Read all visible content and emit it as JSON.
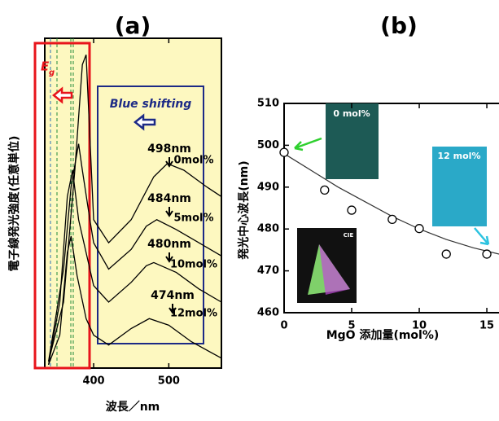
{
  "chart_data": [
    {
      "type": "line",
      "title": "(a)",
      "xlabel": "波長／nm",
      "ylabel": "電子線発光強度(任意単位)",
      "xlim": [
        335,
        570
      ],
      "ylim": [
        0,
        100
      ],
      "xticks": [
        400,
        500
      ],
      "band_label": {
        "main": "E",
        "sub": "g"
      },
      "shift_label": "Blue shifting",
      "series": [
        {
          "name": "0mol%",
          "peak_label": "498nm",
          "color": "#000000",
          "x": [
            340,
            360,
            375,
            385,
            390,
            395,
            400,
            420,
            450,
            480,
            498,
            520,
            550,
            570
          ],
          "values": [
            2,
            20,
            60,
            92,
            95,
            70,
            45,
            38,
            45,
            58,
            62,
            60,
            55,
            52
          ]
        },
        {
          "name": "5mol%",
          "peak_label": "484nm",
          "color": "#000000",
          "x": [
            340,
            360,
            370,
            380,
            385,
            395,
            400,
            420,
            450,
            470,
            484,
            510,
            540,
            570
          ],
          "values": [
            2,
            30,
            55,
            68,
            60,
            45,
            38,
            30,
            36,
            43,
            45,
            42,
            38,
            34
          ]
        },
        {
          "name": "10mol%",
          "peak_label": "480nm",
          "color": "#000000",
          "x": [
            340,
            355,
            365,
            372,
            380,
            395,
            400,
            420,
            450,
            470,
            480,
            510,
            540,
            570
          ],
          "values": [
            1,
            20,
            52,
            60,
            45,
            30,
            25,
            20,
            26,
            31,
            32,
            29,
            24,
            20
          ]
        },
        {
          "name": "12mol%",
          "peak_label": "474nm",
          "color": "#000000",
          "x": [
            340,
            355,
            365,
            370,
            378,
            390,
            400,
            420,
            450,
            474,
            500,
            530,
            570
          ],
          "values": [
            1,
            10,
            35,
            40,
            28,
            15,
            10,
            7,
            12,
            15,
            13,
            8,
            3
          ]
        }
      ]
    },
    {
      "type": "scatter",
      "title": "(b)",
      "xlabel": "MgO 添加量(mol%)",
      "ylabel": "発光中心波長(nm)",
      "xlim": [
        0,
        15.9
      ],
      "ylim": [
        460,
        510
      ],
      "xticks": [
        0,
        5,
        10,
        15
      ],
      "yticks": [
        460,
        470,
        480,
        490,
        500,
        510
      ],
      "insets": [
        "0 mol%",
        "12 mol%",
        "CIE"
      ],
      "series": [
        {
          "color": "#000000",
          "x": [
            0,
            3,
            5,
            8,
            10,
            12,
            15
          ],
          "values": [
            498.3,
            489.3,
            484.5,
            482.3,
            480.1,
            474,
            474
          ]
        },
        {
          "color": "#333333",
          "x": [
            0,
            2,
            4,
            6,
            8,
            10,
            12,
            14,
            15.9
          ],
          "values": [
            498,
            494,
            490,
            486.5,
            483,
            480,
            477.5,
            475.5,
            474
          ]
        }
      ]
    }
  ]
}
